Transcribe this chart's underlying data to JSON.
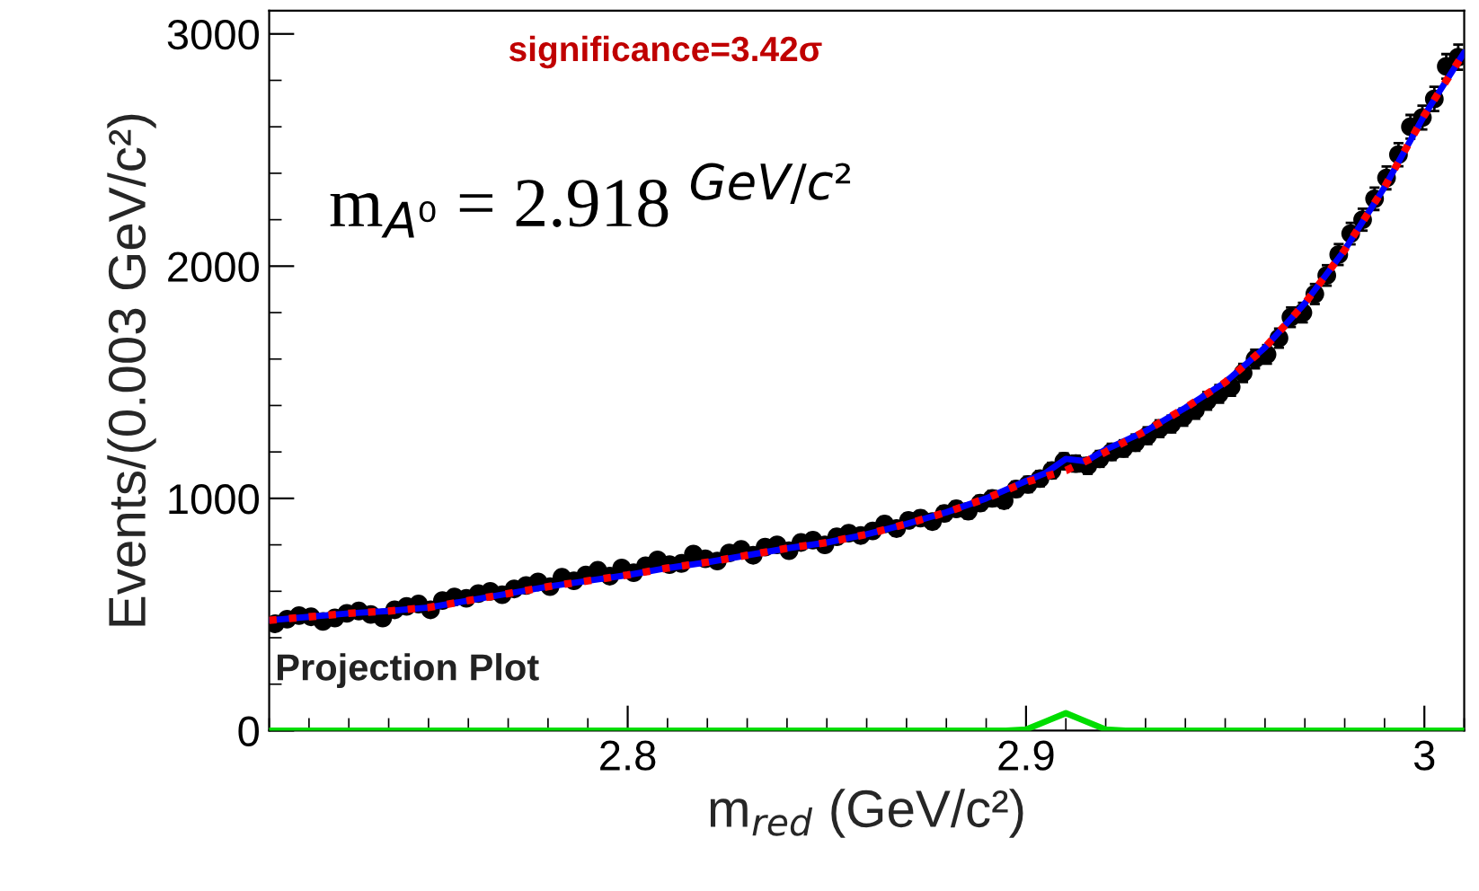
{
  "chart_data": {
    "type": "scatter",
    "xlabel": "m$_{red}$ (GeV/c²)",
    "ylabel": "Events/(0.003 GeV/c²)",
    "xlim": [
      2.71,
      3.01
    ],
    "xticks": [
      2.8,
      2.9,
      3
    ],
    "ylim": [
      0,
      3100
    ],
    "yticks": [
      0,
      1000,
      2000,
      3000
    ],
    "grid": false,
    "legend": false,
    "marker": "circle",
    "annotations": [
      "significance=3.42σ",
      "m$_{A⁰}$ = 2.918 $^{GeV/c²}$",
      "Projection Plot"
    ],
    "series": [
      {
        "color": "#000000",
        "x": [
          2.7115,
          2.7145,
          2.7175,
          2.7205,
          2.7235,
          2.7265,
          2.7295,
          2.7325,
          2.7355,
          2.7385,
          2.7415,
          2.7445,
          2.7475,
          2.7505,
          2.7535,
          2.7565,
          2.7595,
          2.7625,
          2.7655,
          2.7685,
          2.7715,
          2.7745,
          2.7775,
          2.7805,
          2.7835,
          2.7865,
          2.7895,
          2.7925,
          2.7955,
          2.7985,
          2.8015,
          2.8045,
          2.8075,
          2.8105,
          2.8135,
          2.8165,
          2.8195,
          2.8225,
          2.8255,
          2.8285,
          2.8315,
          2.8345,
          2.8375,
          2.8405,
          2.8435,
          2.8465,
          2.8495,
          2.8525,
          2.8555,
          2.8585,
          2.8615,
          2.8645,
          2.8675,
          2.8705,
          2.8735,
          2.8765,
          2.8795,
          2.8825,
          2.8855,
          2.8885,
          2.8915,
          2.8945,
          2.8975,
          2.9005,
          2.9035,
          2.9065,
          2.9095,
          2.9125,
          2.9155,
          2.9185,
          2.9215,
          2.9245,
          2.9275,
          2.9305,
          2.9335,
          2.9365,
          2.9395,
          2.9425,
          2.9455,
          2.9485,
          2.9515,
          2.9545,
          2.9575,
          2.9605,
          2.9635,
          2.9665,
          2.9695,
          2.9725,
          2.9755,
          2.9785,
          2.9815,
          2.9845,
          2.9875,
          2.9905,
          2.9935,
          2.9965,
          2.9995,
          3.0025,
          3.0055,
          3.0085
        ],
        "values": [
          460,
          480,
          495,
          490,
          470,
          485,
          505,
          515,
          500,
          485,
          520,
          535,
          545,
          520,
          560,
          575,
          570,
          590,
          600,
          585,
          610,
          625,
          640,
          620,
          660,
          645,
          670,
          690,
          665,
          700,
          680,
          710,
          735,
          715,
          720,
          760,
          740,
          730,
          765,
          780,
          755,
          790,
          800,
          775,
          810,
          820,
          800,
          835,
          850,
          840,
          860,
          890,
          870,
          905,
          915,
          900,
          935,
          955,
          945,
          980,
          1000,
          990,
          1040,
          1060,
          1085,
          1120,
          1160,
          1150,
          1140,
          1170,
          1200,
          1215,
          1240,
          1270,
          1300,
          1320,
          1350,
          1380,
          1420,
          1450,
          1480,
          1540,
          1600,
          1620,
          1690,
          1780,
          1800,
          1880,
          1960,
          2050,
          2140,
          2200,
          2290,
          2380,
          2480,
          2600,
          2640,
          2720,
          2860,
          2900
        ],
        "errors": [
          21,
          22,
          22,
          22,
          22,
          22,
          22,
          23,
          22,
          22,
          23,
          23,
          23,
          23,
          24,
          24,
          24,
          24,
          24,
          24,
          25,
          25,
          25,
          25,
          26,
          25,
          26,
          26,
          26,
          26,
          26,
          27,
          27,
          27,
          27,
          28,
          27,
          27,
          28,
          28,
          27,
          28,
          28,
          28,
          28,
          29,
          28,
          29,
          29,
          29,
          29,
          30,
          30,
          30,
          30,
          30,
          31,
          31,
          31,
          31,
          32,
          31,
          32,
          33,
          33,
          33,
          34,
          34,
          34,
          34,
          35,
          35,
          35,
          36,
          36,
          36,
          37,
          37,
          38,
          38,
          38,
          39,
          40,
          40,
          41,
          42,
          42,
          43,
          44,
          45,
          46,
          47,
          48,
          49,
          50,
          51,
          51,
          52,
          53,
          54
        ]
      },
      {
        "type": "line",
        "color": "#0000ff",
        "line_style": "solid",
        "marker": "none",
        "x": [
          2.71,
          2.72,
          2.73,
          2.74,
          2.75,
          2.76,
          2.77,
          2.78,
          2.79,
          2.8,
          2.81,
          2.82,
          2.83,
          2.84,
          2.85,
          2.86,
          2.87,
          2.88,
          2.89,
          2.9,
          2.905,
          2.91,
          2.915,
          2.92,
          2.93,
          2.94,
          2.95,
          2.96,
          2.97,
          2.98,
          2.99,
          3.0,
          3.01
        ],
        "values": [
          475,
          490,
          505,
          515,
          530,
          560,
          590,
          620,
          645,
          670,
          700,
          725,
          755,
          785,
          810,
          845,
          890,
          940,
          1000,
          1075,
          1110,
          1170,
          1160,
          1210,
          1290,
          1390,
          1500,
          1650,
          1840,
          2070,
          2340,
          2650,
          2920
        ]
      },
      {
        "type": "line",
        "color": "#ff0000",
        "line_style": "dotted",
        "marker": "none",
        "x": [
          2.71,
          2.72,
          2.73,
          2.74,
          2.75,
          2.76,
          2.77,
          2.78,
          2.79,
          2.8,
          2.81,
          2.82,
          2.83,
          2.84,
          2.85,
          2.86,
          2.87,
          2.88,
          2.89,
          2.9,
          2.91,
          2.92,
          2.93,
          2.94,
          2.95,
          2.96,
          2.97,
          2.98,
          2.99,
          3.0,
          3.01
        ],
        "values": [
          475,
          490,
          505,
          515,
          530,
          560,
          590,
          620,
          645,
          670,
          700,
          725,
          755,
          785,
          810,
          845,
          890,
          940,
          1000,
          1070,
          1120,
          1200,
          1290,
          1390,
          1500,
          1650,
          1840,
          2070,
          2340,
          2650,
          2920
        ]
      },
      {
        "type": "line",
        "color": "#00dd00",
        "line_style": "solid",
        "marker": "none",
        "x": [
          2.71,
          2.895,
          2.9,
          2.905,
          2.91,
          2.915,
          2.92,
          2.925,
          3.01
        ],
        "values": [
          0,
          0,
          5,
          40,
          75,
          40,
          5,
          0,
          0
        ]
      }
    ]
  }
}
